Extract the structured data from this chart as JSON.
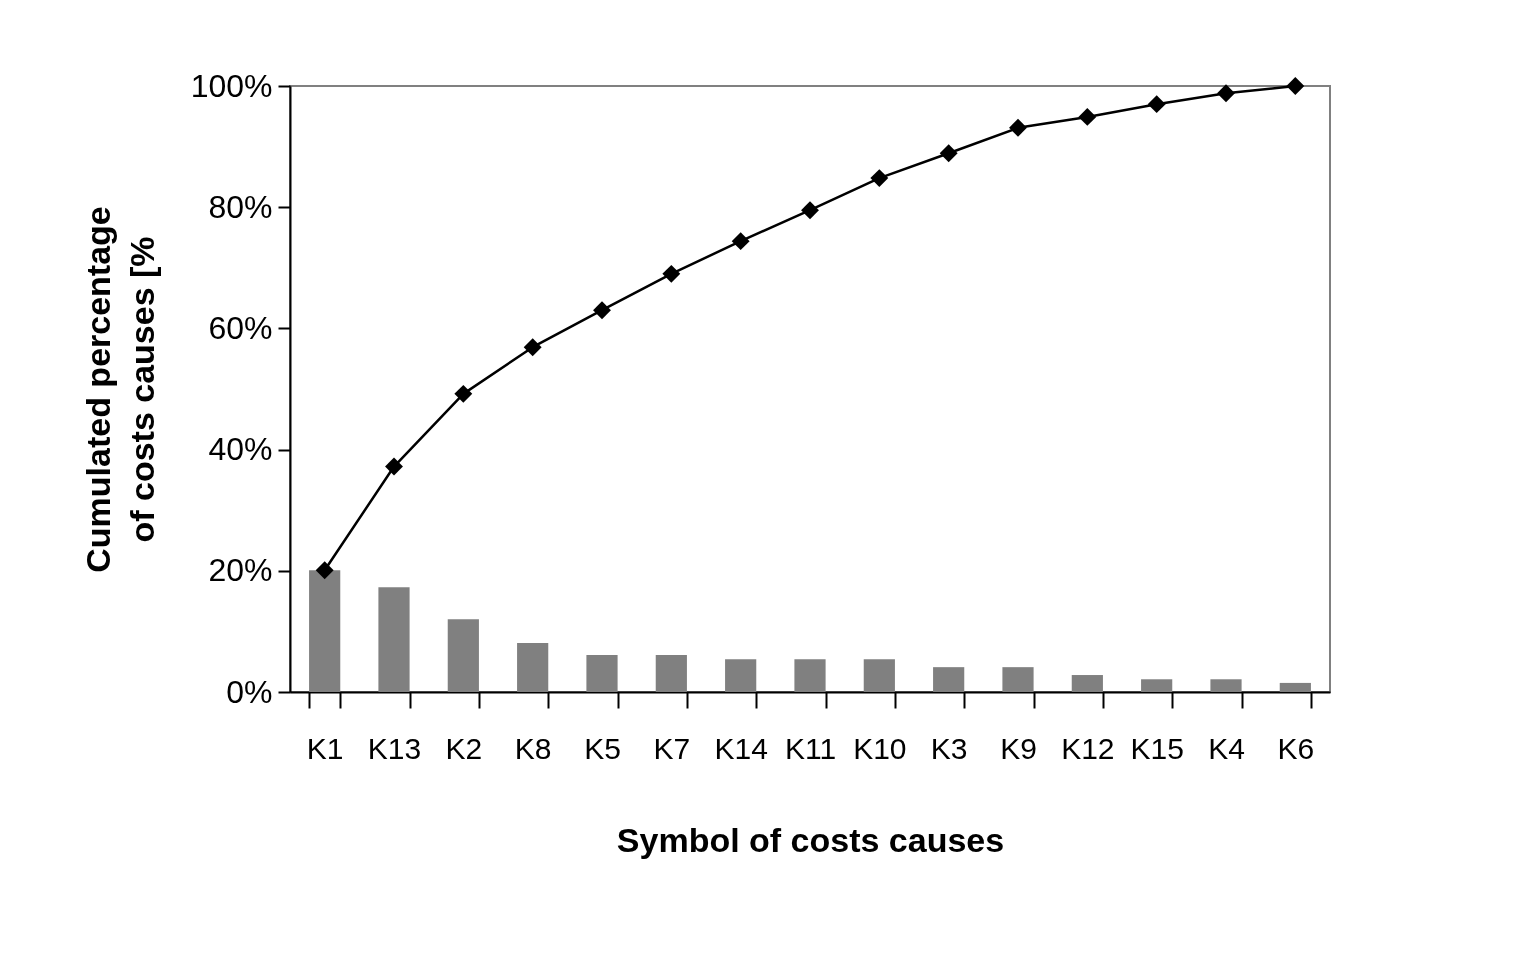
{
  "chart_data": {
    "type": "bar",
    "xlabel": "Symbol of costs causes",
    "ylabel": "Cumulated percentage\nof costs causes [%",
    "categories": [
      "K1",
      "K13",
      "K2",
      "K8",
      "K5",
      "K7",
      "K14",
      "K11",
      "K10",
      "K3",
      "K9",
      "K12",
      "K15",
      "K4",
      "K6"
    ],
    "series": [
      {
        "color": "#808080",
        "values": [
          20.1,
          17.3,
          12.0,
          8.1,
          6.1,
          6.1,
          5.4,
          5.4,
          5.4,
          4.1,
          4.1,
          2.8,
          2.1,
          2.1,
          1.5
        ]
      },
      {
        "type": "line",
        "color": "#000000",
        "values": [
          20.1,
          37.2,
          49.2,
          56.9,
          63.0,
          69.0,
          74.4,
          79.5,
          84.8,
          88.9,
          93.1,
          94.9,
          97.0,
          98.8,
          100
        ]
      }
    ],
    "marker": "diamond",
    "ylim": [
      0,
      100
    ],
    "yticks": [
      {
        "value": 0,
        "label": "0%"
      },
      {
        "value": 20,
        "label": "20%"
      },
      {
        "value": 40,
        "label": "40%"
      },
      {
        "value": 60,
        "label": "60%"
      },
      {
        "value": 80,
        "label": "80%"
      },
      {
        "value": 100,
        "label": "100%"
      }
    ]
  }
}
